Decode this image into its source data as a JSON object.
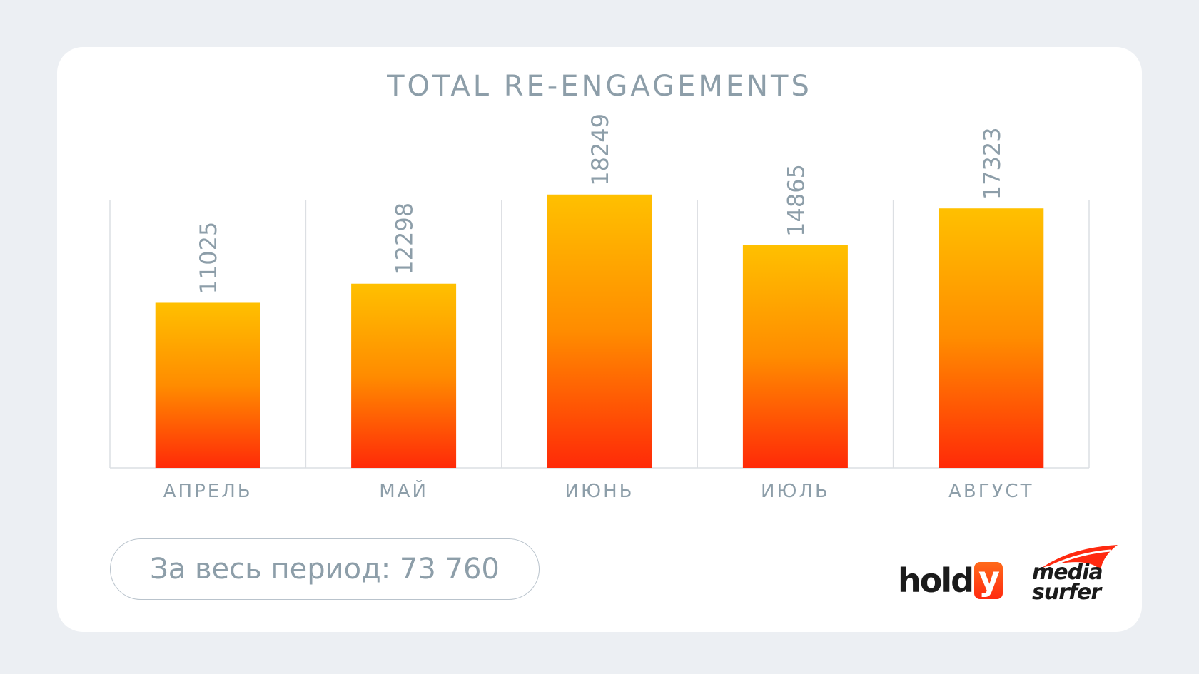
{
  "chart_data": {
    "type": "bar",
    "title": "TOTAL RE-ENGAGEMENTS",
    "categories": [
      "АПРЕЛЬ",
      "МАЙ",
      "ИЮНЬ",
      "ИЮЛЬ",
      "АВГУСТ"
    ],
    "values": [
      11025,
      12298,
      18249,
      14865,
      17323
    ],
    "ylim": [
      0,
      20000
    ],
    "grid": "vertical",
    "value_labels": [
      "11025",
      "12298",
      "18249",
      "14865",
      "17323"
    ],
    "colors": {
      "bar_top": "#ffc000",
      "bar_mid": "#ff8c00",
      "bar_bottom": "#ff2a08",
      "text": "#8d9ea9",
      "grid": "#dcdfe3"
    }
  },
  "summary": {
    "total_label": "За весь период: 73 760"
  },
  "logos": {
    "holdy": {
      "text_main": "hold",
      "text_box": "y"
    },
    "media_surfer": {
      "line1": "media",
      "line2": "surfer"
    }
  }
}
